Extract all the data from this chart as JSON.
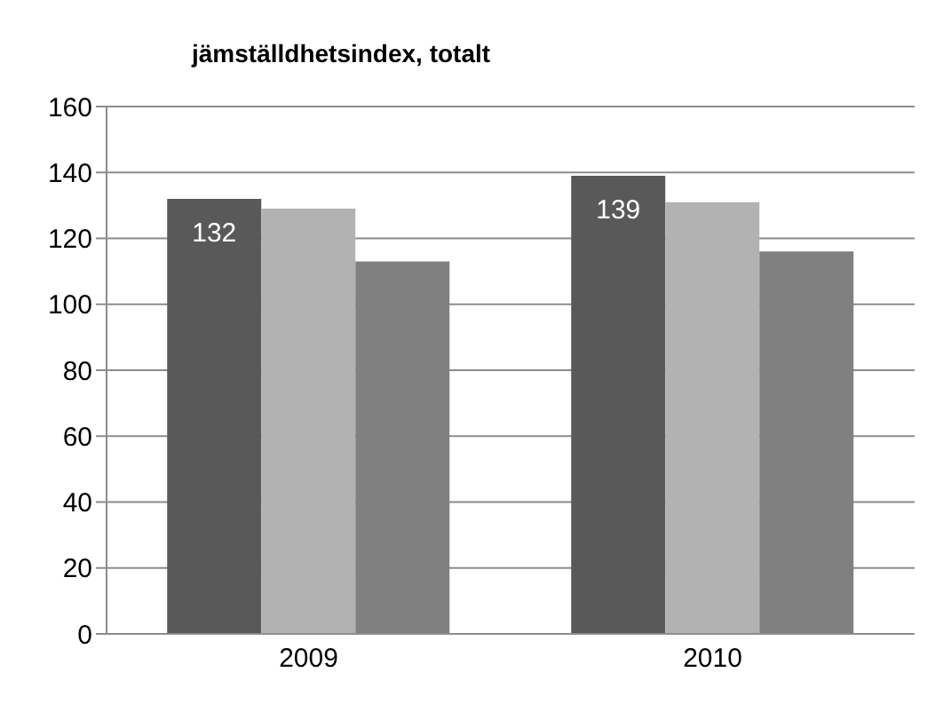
{
  "chart_data": {
    "type": "bar",
    "title": "jämställdhetsindex, totalt",
    "categories": [
      "2009",
      "2010"
    ],
    "series": [
      {
        "color": "#595959",
        "values": [
          132,
          139
        ],
        "value_labels": [
          "132",
          "139"
        ]
      },
      {
        "color": "#b2b2b2",
        "values": [
          129,
          131
        ]
      },
      {
        "color": "#808080",
        "values": [
          113,
          116
        ]
      }
    ],
    "ylim": [
      0,
      160
    ],
    "yticks": [
      0,
      20,
      40,
      60,
      80,
      100,
      120,
      140,
      160
    ],
    "grid": "y",
    "legend": false
  }
}
